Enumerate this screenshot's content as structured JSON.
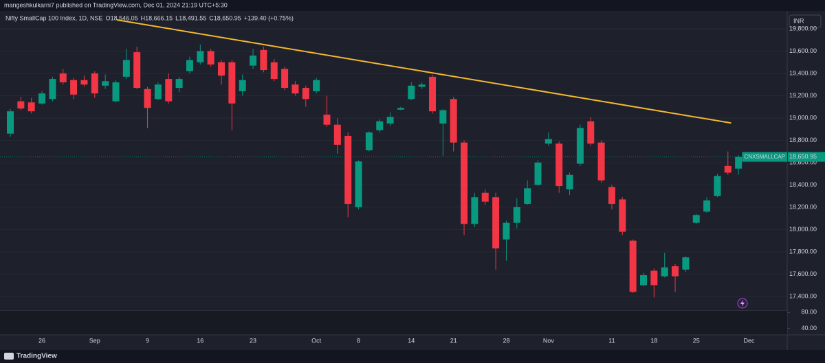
{
  "header": {
    "publisher": "mangeshkulkarni7 published on TradingView.com, Dec 01, 2024 21:19 UTC+5:30",
    "symbol": "Nifty SmallCap 100 Index, 1D, NSE",
    "o": "O",
    "o_value": "18,546.05",
    "h": "H",
    "h_value": "18,666.15",
    "l": "L",
    "l_value": "18,491.55",
    "c": "C",
    "c_value": "18,650.95",
    "change": "+139.40 (+0.75%)",
    "currency": "INR",
    "brand": "TradingView"
  },
  "chart_data": {
    "type": "candlestick",
    "up_color": "#089981",
    "down_color": "#f23645",
    "grid": true,
    "categories": [
      null,
      null,
      null,
      "26",
      null,
      null,
      null,
      null,
      "Sep",
      null,
      null,
      null,
      null,
      "9",
      null,
      null,
      null,
      null,
      "16",
      null,
      null,
      null,
      null,
      "23",
      null,
      null,
      null,
      null,
      null,
      "Oct",
      null,
      null,
      null,
      "8",
      null,
      null,
      null,
      null,
      "14",
      null,
      null,
      null,
      "21",
      null,
      null,
      null,
      null,
      "28",
      null,
      null,
      null,
      "Nov",
      null,
      null,
      null,
      null,
      null,
      "11",
      null,
      null,
      null,
      "18",
      null,
      null,
      null,
      "25",
      null,
      null,
      null,
      null,
      "Dec"
    ],
    "open": [
      18860,
      19150,
      19140,
      19130,
      19170,
      19400,
      19340,
      19340,
      19400,
      19290,
      19150,
      19370,
      19590,
      19260,
      19170,
      19350,
      19270,
      19420,
      19500,
      19600,
      19500,
      19500,
      19240,
      19470,
      19610,
      19500,
      19440,
      19300,
      19270,
      19240,
      19030,
      18940,
      18840,
      18200,
      18710,
      18890,
      18950,
      19075,
      19170,
      19280,
      19370,
      18950,
      19170,
      18780,
      18050,
      18330,
      18290,
      17910,
      18060,
      18230,
      18400,
      18770,
      18770,
      18360,
      18590,
      18970,
      18780,
      18380,
      18270,
      17900,
      17500,
      17630,
      17580,
      17670,
      17640,
      18060,
      18160,
      18300,
      18570,
      18546.05,
      null
    ],
    "high": [
      19080,
      19190,
      19180,
      19240,
      19370,
      19440,
      19360,
      19380,
      19420,
      19390,
      19340,
      19620,
      19640,
      19280,
      19320,
      19400,
      19370,
      19550,
      19660,
      19620,
      19520,
      19520,
      19390,
      19620,
      19640,
      19530,
      19460,
      19330,
      19290,
      19360,
      19200,
      19000,
      18870,
      18620,
      18880,
      18990,
      19050,
      19100,
      19320,
      19320,
      19390,
      19080,
      19190,
      18800,
      18330,
      18360,
      18330,
      18080,
      18280,
      18440,
      18620,
      18870,
      18790,
      18510,
      18940,
      19010,
      18800,
      18400,
      18290,
      17910,
      17610,
      17650,
      17790,
      17690,
      17760,
      18140,
      18290,
      18500,
      18700,
      18666.15,
      null
    ],
    "low": [
      18830,
      19070,
      19040,
      19120,
      19150,
      19300,
      19170,
      19280,
      19180,
      19260,
      19140,
      19350,
      19260,
      18910,
      19160,
      19130,
      19230,
      19400,
      19480,
      19460,
      19300,
      18890,
      19200,
      19440,
      19410,
      19330,
      19250,
      19200,
      19100,
      19220,
      18920,
      18680,
      18110,
      18180,
      18700,
      18870,
      18930,
      19070,
      19160,
      19260,
      19040,
      18660,
      18700,
      17950,
      18020,
      18220,
      17640,
      17720,
      18010,
      18220,
      18390,
      18750,
      18330,
      18310,
      18570,
      18750,
      18420,
      18180,
      17950,
      17430,
      17490,
      17390,
      17570,
      17440,
      17620,
      18050,
      18150,
      18290,
      18490,
      18491.55,
      null
    ],
    "close": [
      19060,
      19085,
      19060,
      19220,
      19350,
      19320,
      19210,
      19300,
      19220,
      19330,
      19320,
      19520,
      19270,
      19090,
      19300,
      19150,
      19350,
      19520,
      19600,
      19480,
      19380,
      19130,
      19340,
      19560,
      19430,
      19350,
      19270,
      19220,
      19170,
      19340,
      18940,
      18760,
      18230,
      18610,
      18870,
      18970,
      19010,
      19090,
      19290,
      19300,
      19060,
      19070,
      18780,
      18050,
      18290,
      18250,
      17830,
      18060,
      18200,
      18370,
      18600,
      18810,
      18390,
      18490,
      18910,
      18770,
      18440,
      18230,
      17980,
      17440,
      17590,
      17500,
      17660,
      17580,
      17750,
      18130,
      18260,
      18480,
      18510,
      18650.95,
      null
    ],
    "ylim": [
      17270,
      19960
    ],
    "yticks": [
      {
        "value": 17400,
        "label": "17,400.00"
      },
      {
        "value": 17600,
        "label": "17,600.00"
      },
      {
        "value": 17800,
        "label": "17,800.00"
      },
      {
        "value": 18000,
        "label": "18,000.00"
      },
      {
        "value": 18200,
        "label": "18,200.00"
      },
      {
        "value": 18400,
        "label": "18,400.00"
      },
      {
        "value": 18600,
        "label": "18,600.00"
      },
      {
        "value": 18800,
        "label": "18,800.00"
      },
      {
        "value": 19000,
        "label": "19,000.00"
      },
      {
        "value": 19200,
        "label": "19,200.00"
      },
      {
        "value": 19400,
        "label": "19,400.00"
      },
      {
        "value": 19600,
        "label": "19,600.00"
      },
      {
        "value": 19800,
        "label": "19,800.00"
      }
    ],
    "trendline": {
      "x": [
        10.1,
        68.3
      ],
      "y": [
        19880,
        18955
      ],
      "color": "#f5b92e"
    },
    "last_price": {
      "name": "CNXSMALLCAP",
      "value": 18650.95,
      "label": "18,650.95"
    },
    "indicator_pane": {
      "ylim": [
        24,
        84
      ],
      "yticks": [
        {
          "value": 80,
          "label": "80.00"
        },
        {
          "value": 40,
          "label": "40.00"
        }
      ]
    }
  }
}
